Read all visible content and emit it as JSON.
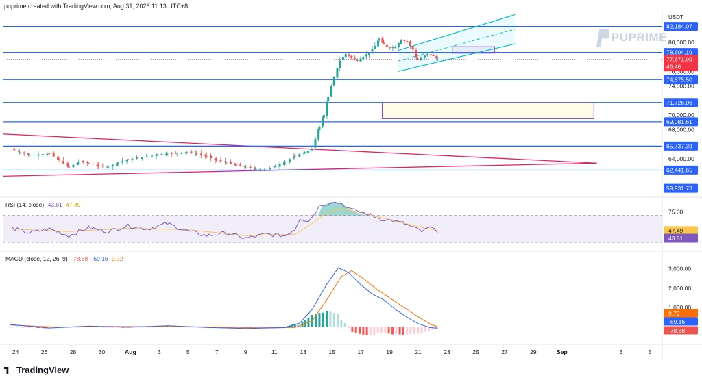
{
  "header": {
    "created_by": "puprime created with TradingView.com, Aug 31, 2026 11:13 UTC+8"
  },
  "brand": {
    "watermark": "PUPRIME"
  },
  "footer": {
    "logo_text": "TradingView"
  },
  "colors": {
    "up": "#26a69a",
    "down": "#ef5350",
    "level_line": "#2962ff",
    "triangle": "#e91e63",
    "channel": "#00bcd4",
    "box": "#7e57c2",
    "rsi_line": "#7e57c2",
    "rsi_ma": "#f9c74f",
    "macd_line": "#2962ff",
    "signal_line": "#ff6d00",
    "price_badge": "#f23645"
  },
  "chart_data": [
    {
      "type": "candlestick",
      "pane": "price",
      "currency": "USDT",
      "y_ticks": [
        "80,000.00",
        "76,000.00",
        "74,000.00",
        "70,000.00",
        "68,000.00",
        "64,000.00"
      ],
      "ylim": [
        59000,
        84500
      ],
      "x_ticks": [
        "24",
        "26",
        "28",
        "30",
        "Aug",
        "3",
        "5",
        "7",
        "9",
        "11",
        "13",
        "15",
        "17",
        "19",
        "21",
        "23",
        "25",
        "27",
        "29",
        "Sep",
        "3",
        "5"
      ],
      "horizontal_levels": [
        {
          "label": "82,184.07",
          "value": 82184.07
        },
        {
          "label": "78,604.19",
          "value": 78604.19
        },
        {
          "label": "74,875.50",
          "value": 74875.5
        },
        {
          "label": "71,726.06",
          "value": 71726.06
        },
        {
          "label": "69,081.61",
          "value": 69081.61
        },
        {
          "label": "65,737.39",
          "value": 65737.39
        },
        {
          "label": "62,441.65",
          "value": 62441.65
        },
        {
          "label": "59,931.73",
          "value": 59931.73
        }
      ],
      "last_price": {
        "label": "77,671.99",
        "countdown": "46:46",
        "value": 77671.99
      },
      "notes": "Daily bars from Jul 23 to Aug 31; consolidation 62,400–66,000 through mid-August, breakout Aug 20 to ~78,000, ascending channel peaking near 81,000, last 77,671.99."
    },
    {
      "type": "line",
      "pane": "rsi",
      "title": "RSI (14, close)",
      "values_display": [
        "43.81",
        "47.49"
      ],
      "series": [
        {
          "name": "RSI",
          "last": 43.81
        },
        {
          "name": "RSI-based MA",
          "last": 47.49
        }
      ],
      "y_ticks": [
        "75.00"
      ],
      "bands": [
        30,
        70
      ],
      "ylim": [
        20,
        95
      ]
    },
    {
      "type": "line",
      "pane": "macd",
      "title": "MACD (close, 12, 26, 9)",
      "values_display": [
        "-78.88",
        "-69.16",
        "9.72"
      ],
      "series": [
        {
          "name": "Histogram",
          "last": -78.88
        },
        {
          "name": "MACD",
          "last": -69.16
        },
        {
          "name": "Signal",
          "last": 9.72
        }
      ],
      "y_ticks": [
        "3,000.00",
        "2,000.00",
        "1,000.00"
      ],
      "ylim": [
        -800,
        3800
      ]
    }
  ]
}
